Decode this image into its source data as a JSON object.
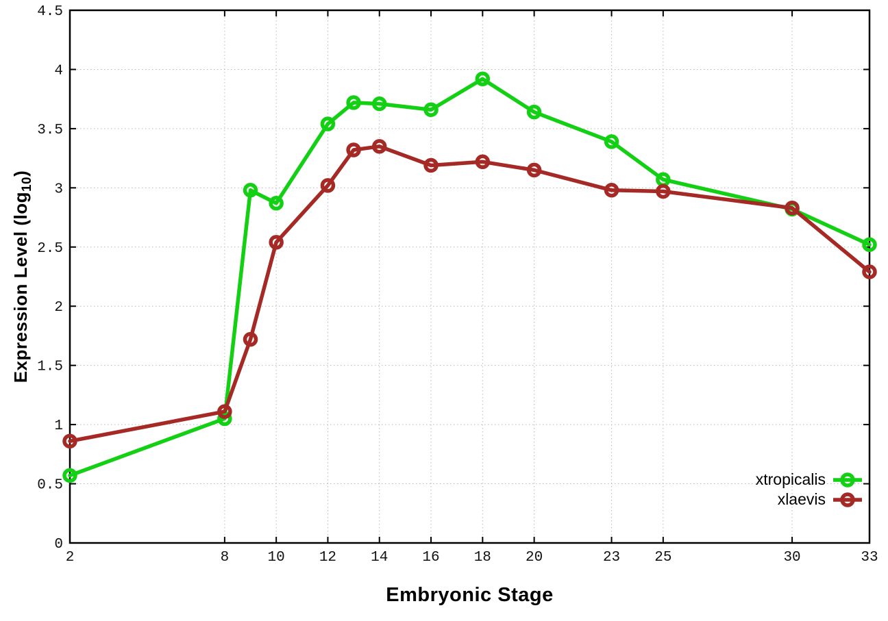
{
  "chart_data": {
    "type": "line",
    "title": "",
    "xlabel": "Embryonic Stage",
    "ylabel": {
      "text": "Expression Level (log",
      "sub": "10",
      "suffix": ")"
    },
    "x": [
      2,
      8,
      9,
      10,
      12,
      13,
      14,
      16,
      18,
      20,
      23,
      25,
      30,
      33
    ],
    "xticks": [
      "2",
      "8",
      "10",
      "12",
      "14",
      "16",
      "18",
      "20",
      "23",
      "25",
      "30",
      "33"
    ],
    "yticks": [
      "0",
      "0.5",
      "1",
      "1.5",
      "2",
      "2.5",
      "3",
      "3.5",
      "4",
      "4.5"
    ],
    "xlim": [
      2,
      33
    ],
    "ylim": [
      0,
      4.5
    ],
    "grid": true,
    "grid_style": "dotted",
    "legend_position": "bottom-right",
    "axis_color": "#000000",
    "grid_color": "#b9b9b9",
    "tick_label_color": "#111111",
    "series": [
      {
        "name": "xtropicalis",
        "color": "#14d014",
        "marker": "open-circle",
        "values": [
          0.57,
          1.05,
          2.98,
          2.87,
          3.54,
          3.72,
          3.71,
          3.66,
          3.92,
          3.64,
          3.39,
          3.07,
          2.82,
          2.52
        ]
      },
      {
        "name": "xlaevis",
        "color": "#a52a25",
        "marker": "open-circle",
        "values": [
          0.86,
          1.11,
          1.72,
          2.54,
          3.02,
          3.32,
          3.35,
          3.19,
          3.22,
          3.15,
          2.98,
          2.97,
          2.83,
          2.29
        ]
      }
    ]
  }
}
